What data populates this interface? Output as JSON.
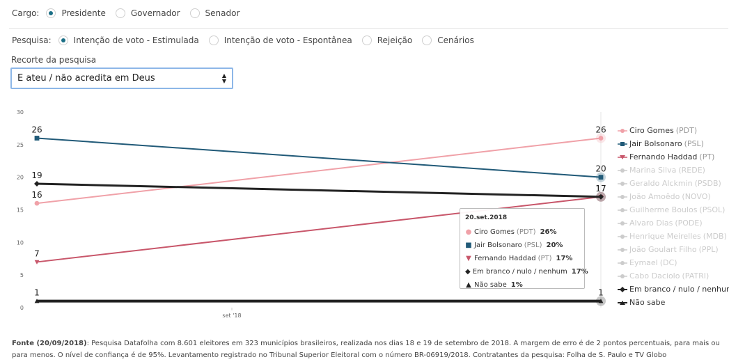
{
  "filters": {
    "cargo": {
      "label": "Cargo:",
      "options": [
        {
          "label": "Presidente",
          "selected": true
        },
        {
          "label": "Governador",
          "selected": false
        },
        {
          "label": "Senador",
          "selected": false
        }
      ]
    },
    "pesquisa": {
      "label": "Pesquisa:",
      "options": [
        {
          "label": "Intenção de voto - Estimulada",
          "selected": true
        },
        {
          "label": "Intenção de voto - Espontânea",
          "selected": false
        },
        {
          "label": "Rejeição",
          "selected": false
        },
        {
          "label": "Cenários",
          "selected": false
        }
      ]
    }
  },
  "recorte": {
    "label": "Recorte da pesquisa",
    "value": "E ateu / não acredita em Deus"
  },
  "chart_data": {
    "type": "line",
    "x_tick_label": "set '18",
    "ylim": [
      0,
      30
    ],
    "y_ticks": [
      0,
      5,
      10,
      15,
      20,
      25,
      30
    ],
    "grid": false,
    "legend_position": "right",
    "series": [
      {
        "name": "Ciro Gomes",
        "party": "(PDT)",
        "color": "#f0a1a8",
        "marker": "circle",
        "values": [
          16,
          26
        ],
        "active": true
      },
      {
        "name": "Jair Bolsonaro",
        "party": "(PSL)",
        "color": "#215a78",
        "marker": "square",
        "values": [
          26,
          20
        ],
        "active": true
      },
      {
        "name": "Fernando Haddad",
        "party": "(PT)",
        "color": "#c8566a",
        "marker": "triangle-down",
        "values": [
          7,
          17
        ],
        "active": true
      },
      {
        "name": "Marina Silva",
        "party": "(REDE)",
        "color": "#cccccc",
        "marker": "circle",
        "values": [],
        "active": false
      },
      {
        "name": "Geraldo Alckmin",
        "party": "(PSDB)",
        "color": "#cccccc",
        "marker": "circle",
        "values": [],
        "active": false
      },
      {
        "name": "João Amoêdo",
        "party": "(NOVO)",
        "color": "#cccccc",
        "marker": "circle",
        "values": [],
        "active": false
      },
      {
        "name": "Guilherme Boulos",
        "party": "(PSOL)",
        "color": "#cccccc",
        "marker": "circle",
        "values": [],
        "active": false
      },
      {
        "name": "Alvaro Dias",
        "party": "(PODE)",
        "color": "#cccccc",
        "marker": "circle",
        "values": [],
        "active": false
      },
      {
        "name": "Henrique Meirelles",
        "party": "(MDB)",
        "color": "#cccccc",
        "marker": "circle",
        "values": [],
        "active": false
      },
      {
        "name": "João Goulart Filho",
        "party": "(PPL)",
        "color": "#cccccc",
        "marker": "circle",
        "values": [],
        "active": false
      },
      {
        "name": "Eymael",
        "party": "(DC)",
        "color": "#cccccc",
        "marker": "circle",
        "values": [],
        "active": false
      },
      {
        "name": "Cabo Daciolo",
        "party": "(PATRI)",
        "color": "#cccccc",
        "marker": "circle",
        "values": [],
        "active": false
      },
      {
        "name": "Em branco / nulo / nenhum",
        "party": "",
        "color": "#222222",
        "marker": "diamond",
        "values": [
          19,
          17
        ],
        "active": true
      },
      {
        "name": "Não sabe",
        "party": "",
        "color": "#222222",
        "marker": "triangle-up",
        "values": [
          1,
          1
        ],
        "active": true
      }
    ]
  },
  "tooltip": {
    "title": "20.set.2018",
    "rows": [
      {
        "sym": "●",
        "color": "#f0a1a8",
        "name": "Ciro Gomes",
        "party": "(PDT)",
        "value": "26%"
      },
      {
        "sym": "■",
        "color": "#215a78",
        "name": "Jair Bolsonaro",
        "party": "(PSL)",
        "value": "20%"
      },
      {
        "sym": "▼",
        "color": "#c8566a",
        "name": "Fernando Haddad",
        "party": "(PT)",
        "value": "17%"
      },
      {
        "sym": "◆",
        "color": "#222222",
        "name": "Em branco / nulo / nenhum",
        "party": "",
        "value": "17%"
      },
      {
        "sym": "▲",
        "color": "#222222",
        "name": "Não sabe",
        "party": "",
        "value": "1%"
      }
    ]
  },
  "footer": {
    "source_label": "Fonte (20/09/2018)",
    "text": ": Pesquisa Datafolha com 8.601 eleitores em 323 municípios brasileiros, realizada nos dias 18 e 19 de setembro de 2018. A margem de erro é de 2 pontos percentuais, para mais ou para menos. O nível de confiança é de 95%. Levantamento registrado no Tribunal Superior Eleitoral com o número BR-06919/2018. Contratantes da pesquisa: Folha de S. Paulo e TV Globo"
  }
}
